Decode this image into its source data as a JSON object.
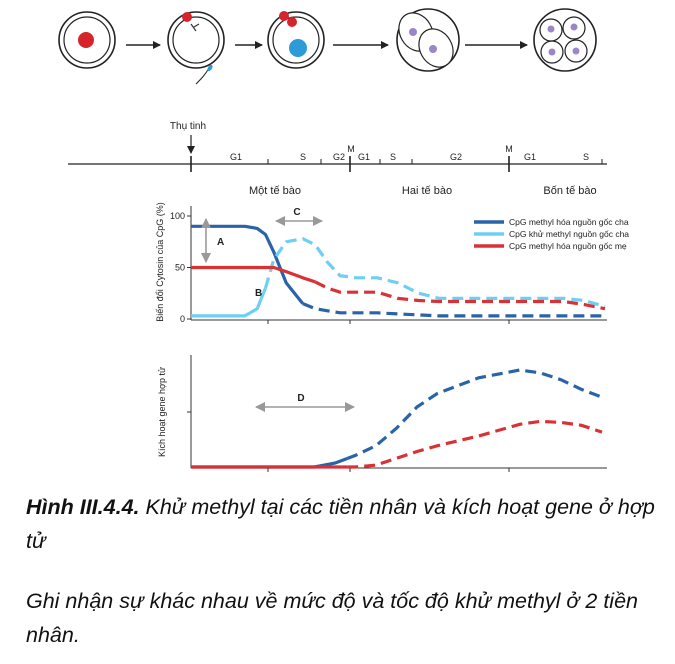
{
  "cells": {
    "labels": [
      "Thụ tinh"
    ]
  },
  "timeline": {
    "phases": [
      "G1",
      "S",
      "G2",
      "M",
      "G1",
      "S",
      "G2",
      "M",
      "G1",
      "S"
    ],
    "stages": [
      "Một tế bào",
      "Hai tế bào",
      "Bốn tế bào"
    ]
  },
  "chart_data": [
    {
      "type": "line",
      "title": "",
      "ylabel": "Biến đổi Cytosin của CpG (%)",
      "xlabel": "",
      "ylim": [
        0,
        100
      ],
      "yticks": [
        "100",
        "50",
        "0"
      ],
      "legend_position": "top-right",
      "legend": [
        "CpG methyl hóa nguồn gốc cha",
        "CpG khử methyl nguồn gốc cha",
        "CpG methyl hóa nguồn gốc mẹ"
      ],
      "annotations": [
        "A",
        "B",
        "C"
      ],
      "x": [
        0,
        0.5,
        1,
        1.3,
        1.6,
        1.8,
        2,
        2.3,
        2.7,
        3,
        3.3,
        3.6,
        4,
        4.5,
        5,
        5.5,
        6,
        7,
        7.5,
        8,
        8.5,
        9,
        9.5,
        10
      ],
      "series": [
        {
          "color": "#2a63a8",
          "solid_until": 2.7,
          "values": [
            90,
            90,
            90,
            90,
            88,
            82,
            65,
            35,
            15,
            10,
            8,
            6,
            6,
            6,
            5,
            4,
            3,
            3,
            3,
            3,
            3,
            3,
            3,
            3
          ]
        },
        {
          "color": "#6ecff6",
          "solid_until": 1.8,
          "values": [
            3,
            3,
            3,
            3,
            10,
            30,
            58,
            75,
            78,
            72,
            55,
            42,
            40,
            40,
            35,
            25,
            20,
            20,
            20,
            20,
            20,
            20,
            18,
            12
          ]
        },
        {
          "color": "#d83236",
          "solid_until": 3.0,
          "values": [
            50,
            50,
            50,
            50,
            50,
            50,
            50,
            46,
            40,
            36,
            30,
            26,
            26,
            26,
            20,
            18,
            17,
            17,
            17,
            17,
            17,
            17,
            14,
            10
          ]
        }
      ]
    },
    {
      "type": "line",
      "title": "",
      "ylabel": "Kích hoạt gene hợp tử",
      "xlabel": "",
      "annotations": [
        "D"
      ],
      "x": [
        0,
        1,
        1.5,
        2,
        3,
        3.5,
        4,
        4.5,
        5,
        5.5,
        6,
        7,
        8,
        8.5,
        9,
        9.5,
        10
      ],
      "series": [
        {
          "color": "#2a63a8",
          "solid_until": 3.8,
          "values": [
            0,
            0,
            0,
            0,
            0,
            4,
            12,
            22,
            40,
            62,
            76,
            92,
            100,
            97,
            90,
            80,
            72
          ]
        },
        {
          "color": "#d83236",
          "solid_until": 3.8,
          "values": [
            0,
            0,
            0,
            0,
            0,
            0,
            0,
            2,
            9,
            16,
            22,
            32,
            44,
            47,
            46,
            43,
            36
          ]
        }
      ]
    }
  ],
  "caption": {
    "figure_label": "Hình III.4.4.",
    "figure_text": " Khử methyl tại các tiền nhân và kích hoạt gene ở hợp tử",
    "note": "Ghi nhận sự khác nhau về mức độ và tốc độ khử methyl ở 2 tiền nhân."
  }
}
